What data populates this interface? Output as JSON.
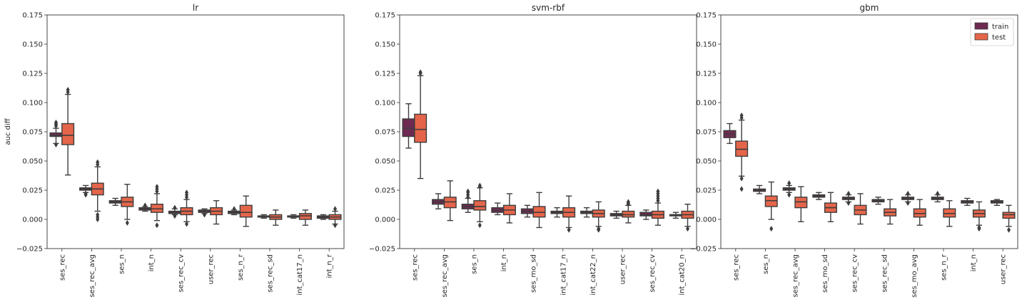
{
  "chart_data": [
    {
      "type": "box",
      "title": "lr",
      "xlabel": "",
      "ylabel": "auc diff",
      "ylim": [
        -0.025,
        0.175
      ],
      "yticks": [
        "−0.025",
        "0.000",
        "0.025",
        "0.050",
        "0.075",
        "0.100",
        "0.125",
        "0.150",
        "0.175"
      ],
      "categories": [
        "ses_rec",
        "ses_rec_avg",
        "ses_n",
        "int_n",
        "ses_rec_cv",
        "user_rec",
        "ses_n_r",
        "ses_rec_sd",
        "int_cat17_n",
        "int_n_r"
      ],
      "series": [
        {
          "name": "train",
          "boxes": [
            {
              "whislo": 0.065,
              "q1": 0.071,
              "med": 0.072,
              "q3": 0.074,
              "whishi": 0.078,
              "fliers": [
                0.064,
                0.08,
                0.081,
                0.082,
                0.083
              ]
            },
            {
              "whislo": 0.023,
              "q1": 0.025,
              "med": 0.026,
              "q3": 0.027,
              "whishi": 0.029,
              "fliers": [
                0.021,
                0.022
              ]
            },
            {
              "whislo": 0.012,
              "q1": 0.014,
              "med": 0.015,
              "q3": 0.016,
              "whishi": 0.018,
              "fliers": []
            },
            {
              "whislo": 0.007,
              "q1": 0.008,
              "med": 0.009,
              "q3": 0.01,
              "whishi": 0.011,
              "fliers": [
                0.012
              ]
            },
            {
              "whislo": 0.004,
              "q1": 0.005,
              "med": 0.006,
              "q3": 0.007,
              "whishi": 0.009,
              "fliers": [
                0.003,
                0.01
              ]
            },
            {
              "whislo": 0.005,
              "q1": 0.006,
              "med": 0.007,
              "q3": 0.008,
              "whishi": 0.009,
              "fliers": [
                0.004
              ]
            },
            {
              "whislo": 0.004,
              "q1": 0.005,
              "med": 0.006,
              "q3": 0.007,
              "whishi": 0.008,
              "fliers": [
                0.009
              ]
            },
            {
              "whislo": 0.001,
              "q1": 0.002,
              "med": 0.002,
              "q3": 0.003,
              "whishi": 0.004,
              "fliers": []
            },
            {
              "whislo": 0.001,
              "q1": 0.002,
              "med": 0.002,
              "q3": 0.003,
              "whishi": 0.004,
              "fliers": []
            },
            {
              "whislo": 0.0,
              "q1": 0.001,
              "med": 0.002,
              "q3": 0.003,
              "whishi": 0.004,
              "fliers": []
            }
          ]
        },
        {
          "name": "test",
          "boxes": [
            {
              "whislo": 0.038,
              "q1": 0.064,
              "med": 0.072,
              "q3": 0.082,
              "whishi": 0.107,
              "fliers": [
                0.109,
                0.111
              ]
            },
            {
              "whislo": 0.007,
              "q1": 0.021,
              "med": 0.026,
              "q3": 0.031,
              "whishi": 0.045,
              "fliers": [
                0.0,
                0.002,
                0.004,
                0.047,
                0.049
              ]
            },
            {
              "whislo": 0.0,
              "q1": 0.011,
              "med": 0.015,
              "q3": 0.019,
              "whishi": 0.03,
              "fliers": [
                -0.003
              ]
            },
            {
              "whislo": -0.001,
              "q1": 0.006,
              "med": 0.009,
              "q3": 0.013,
              "whishi": 0.022,
              "fliers": [
                -0.005,
                0.024,
                0.026,
                0.028
              ]
            },
            {
              "whislo": -0.002,
              "q1": 0.004,
              "med": 0.007,
              "q3": 0.01,
              "whishi": 0.017,
              "fliers": [
                -0.004,
                0.019,
                0.021,
                0.023
              ]
            },
            {
              "whislo": -0.004,
              "q1": 0.004,
              "med": 0.007,
              "q3": 0.01,
              "whishi": 0.016,
              "fliers": []
            },
            {
              "whislo": -0.006,
              "q1": 0.002,
              "med": 0.006,
              "q3": 0.012,
              "whishi": 0.02,
              "fliers": []
            },
            {
              "whislo": -0.005,
              "q1": 0.0,
              "med": 0.002,
              "q3": 0.004,
              "whishi": 0.008,
              "fliers": []
            },
            {
              "whislo": -0.005,
              "q1": 0.0,
              "med": 0.003,
              "q3": 0.005,
              "whishi": 0.008,
              "fliers": []
            },
            {
              "whislo": -0.004,
              "q1": 0.0,
              "med": 0.002,
              "q3": 0.004,
              "whishi": 0.007,
              "fliers": [
                -0.005,
                0.009
              ]
            }
          ]
        }
      ]
    },
    {
      "type": "box",
      "title": "svm-rbf",
      "xlabel": "",
      "ylabel": "",
      "ylim": [
        -0.025,
        0.175
      ],
      "yticks": [
        "−0.025",
        "0.000",
        "0.025",
        "0.050",
        "0.075",
        "0.100",
        "0.125",
        "0.150",
        "0.175"
      ],
      "categories": [
        "ses_rec",
        "ses_rec_avg",
        "ses_n",
        "int_n",
        "ses_mo_sd",
        "int_cat17_n",
        "int_cat22_n",
        "user_rec",
        "ses_rec_cv",
        "int_cat20_n"
      ],
      "series": [
        {
          "name": "train",
          "boxes": [
            {
              "whislo": 0.061,
              "q1": 0.071,
              "med": 0.078,
              "q3": 0.086,
              "whishi": 0.099,
              "fliers": []
            },
            {
              "whislo": 0.009,
              "q1": 0.013,
              "med": 0.015,
              "q3": 0.017,
              "whishi": 0.022,
              "fliers": []
            },
            {
              "whislo": 0.006,
              "q1": 0.009,
              "med": 0.011,
              "q3": 0.013,
              "whishi": 0.018,
              "fliers": [
                0.019,
                0.021,
                0.023,
                0.024
              ]
            },
            {
              "whislo": 0.004,
              "q1": 0.006,
              "med": 0.008,
              "q3": 0.01,
              "whishi": 0.014,
              "fliers": []
            },
            {
              "whislo": 0.002,
              "q1": 0.005,
              "med": 0.007,
              "q3": 0.009,
              "whishi": 0.012,
              "fliers": []
            },
            {
              "whislo": 0.002,
              "q1": 0.005,
              "med": 0.006,
              "q3": 0.007,
              "whishi": 0.01,
              "fliers": []
            },
            {
              "whislo": 0.002,
              "q1": 0.005,
              "med": 0.006,
              "q3": 0.007,
              "whishi": 0.01,
              "fliers": []
            },
            {
              "whislo": 0.001,
              "q1": 0.003,
              "med": 0.004,
              "q3": 0.005,
              "whishi": 0.007,
              "fliers": []
            },
            {
              "whislo": 0.0,
              "q1": 0.003,
              "med": 0.004,
              "q3": 0.006,
              "whishi": 0.008,
              "fliers": []
            },
            {
              "whislo": 0.001,
              "q1": 0.003,
              "med": 0.004,
              "q3": 0.004,
              "whishi": 0.006,
              "fliers": []
            }
          ]
        },
        {
          "name": "test",
          "boxes": [
            {
              "whislo": 0.035,
              "q1": 0.066,
              "med": 0.077,
              "q3": 0.09,
              "whishi": 0.123,
              "fliers": [
                0.125,
                0.126
              ]
            },
            {
              "whislo": -0.001,
              "q1": 0.01,
              "med": 0.015,
              "q3": 0.019,
              "whishi": 0.033,
              "fliers": []
            },
            {
              "whislo": -0.002,
              "q1": 0.008,
              "med": 0.011,
              "q3": 0.016,
              "whishi": 0.027,
              "fliers": [
                -0.005,
                0.028,
                0.029
              ]
            },
            {
              "whislo": -0.003,
              "q1": 0.004,
              "med": 0.008,
              "q3": 0.012,
              "whishi": 0.022,
              "fliers": []
            },
            {
              "whislo": -0.007,
              "q1": 0.002,
              "med": 0.006,
              "q3": 0.011,
              "whishi": 0.023,
              "fliers": []
            },
            {
              "whislo": -0.007,
              "q1": 0.002,
              "med": 0.006,
              "q3": 0.01,
              "whishi": 0.02,
              "fliers": [
                -0.009
              ]
            },
            {
              "whislo": -0.006,
              "q1": 0.002,
              "med": 0.005,
              "q3": 0.008,
              "whishi": 0.015,
              "fliers": [
                -0.009,
                -0.008
              ]
            },
            {
              "whislo": -0.003,
              "q1": 0.002,
              "med": 0.004,
              "q3": 0.007,
              "whishi": 0.012,
              "fliers": [
                0.013,
                0.014,
                0.015
              ]
            },
            {
              "whislo": -0.005,
              "q1": 0.001,
              "med": 0.004,
              "q3": 0.007,
              "whishi": 0.014,
              "fliers": [
                0.016,
                0.018,
                0.02,
                0.022,
                0.024
              ]
            },
            {
              "whislo": -0.006,
              "q1": 0.001,
              "med": 0.004,
              "q3": 0.007,
              "whishi": 0.013,
              "fliers": [
                -0.008
              ]
            }
          ]
        }
      ]
    },
    {
      "type": "box",
      "title": "gbm",
      "xlabel": "",
      "ylabel": "",
      "ylim": [
        -0.025,
        0.175
      ],
      "yticks": [
        "−0.025",
        "0.000",
        "0.025",
        "0.050",
        "0.075",
        "0.100",
        "0.125",
        "0.150",
        "0.175"
      ],
      "legend": {
        "position": "top-right",
        "entries": [
          "train",
          "test"
        ]
      },
      "categories": [
        "ses_rec",
        "ses_n",
        "ses_rec_avg",
        "ses_mo_sd",
        "ses_rec_cv",
        "ses_rec_sd",
        "ses_mo_avg",
        "ses_n_r",
        "int_n",
        "user_rec"
      ],
      "series": [
        {
          "name": "train",
          "boxes": [
            {
              "whislo": 0.065,
              "q1": 0.07,
              "med": 0.073,
              "q3": 0.076,
              "whishi": 0.082,
              "fliers": []
            },
            {
              "whislo": 0.022,
              "q1": 0.024,
              "med": 0.025,
              "q3": 0.026,
              "whishi": 0.029,
              "fliers": []
            },
            {
              "whislo": 0.023,
              "q1": 0.025,
              "med": 0.026,
              "q3": 0.027,
              "whishi": 0.029,
              "fliers": [
                0.021,
                0.031
              ]
            },
            {
              "whislo": 0.017,
              "q1": 0.019,
              "med": 0.02,
              "q3": 0.021,
              "whishi": 0.023,
              "fliers": []
            },
            {
              "whislo": 0.015,
              "q1": 0.017,
              "med": 0.018,
              "q3": 0.019,
              "whishi": 0.021,
              "fliers": [
                0.014,
                0.022
              ]
            },
            {
              "whislo": 0.013,
              "q1": 0.015,
              "med": 0.016,
              "q3": 0.017,
              "whishi": 0.019,
              "fliers": []
            },
            {
              "whislo": 0.015,
              "q1": 0.017,
              "med": 0.018,
              "q3": 0.019,
              "whishi": 0.021,
              "fliers": [
                0.014,
                0.022
              ]
            },
            {
              "whislo": 0.015,
              "q1": 0.017,
              "med": 0.018,
              "q3": 0.019,
              "whishi": 0.021,
              "fliers": [
                0.022
              ]
            },
            {
              "whislo": 0.012,
              "q1": 0.014,
              "med": 0.015,
              "q3": 0.016,
              "whishi": 0.018,
              "fliers": []
            },
            {
              "whislo": 0.012,
              "q1": 0.014,
              "med": 0.015,
              "q3": 0.016,
              "whishi": 0.017,
              "fliers": []
            }
          ]
        },
        {
          "name": "test",
          "boxes": [
            {
              "whislo": 0.037,
              "q1": 0.054,
              "med": 0.06,
              "q3": 0.067,
              "whishi": 0.085,
              "fliers": [
                0.026,
                0.035,
                0.087,
                0.089
              ]
            },
            {
              "whislo": 0.0,
              "q1": 0.011,
              "med": 0.016,
              "q3": 0.02,
              "whishi": 0.032,
              "fliers": [
                -0.008
              ]
            },
            {
              "whislo": -0.002,
              "q1": 0.01,
              "med": 0.015,
              "q3": 0.019,
              "whishi": 0.028,
              "fliers": []
            },
            {
              "whislo": -0.002,
              "q1": 0.006,
              "med": 0.01,
              "q3": 0.014,
              "whishi": 0.023,
              "fliers": []
            },
            {
              "whislo": -0.004,
              "q1": 0.004,
              "med": 0.008,
              "q3": 0.012,
              "whishi": 0.022,
              "fliers": []
            },
            {
              "whislo": -0.004,
              "q1": 0.003,
              "med": 0.006,
              "q3": 0.009,
              "whishi": 0.017,
              "fliers": []
            },
            {
              "whislo": -0.005,
              "q1": 0.002,
              "med": 0.005,
              "q3": 0.009,
              "whishi": 0.017,
              "fliers": []
            },
            {
              "whislo": -0.006,
              "q1": 0.002,
              "med": 0.005,
              "q3": 0.009,
              "whishi": 0.016,
              "fliers": []
            },
            {
              "whislo": -0.005,
              "q1": 0.002,
              "med": 0.005,
              "q3": 0.008,
              "whishi": 0.015,
              "fliers": [
                -0.008,
                -0.007
              ]
            },
            {
              "whislo": -0.006,
              "q1": 0.001,
              "med": 0.004,
              "q3": 0.006,
              "whishi": 0.012,
              "fliers": [
                -0.009
              ]
            }
          ]
        }
      ]
    }
  ],
  "colors": {
    "train": "#6e2a52",
    "test": "#e5654a",
    "line": "#3d3d3d"
  }
}
